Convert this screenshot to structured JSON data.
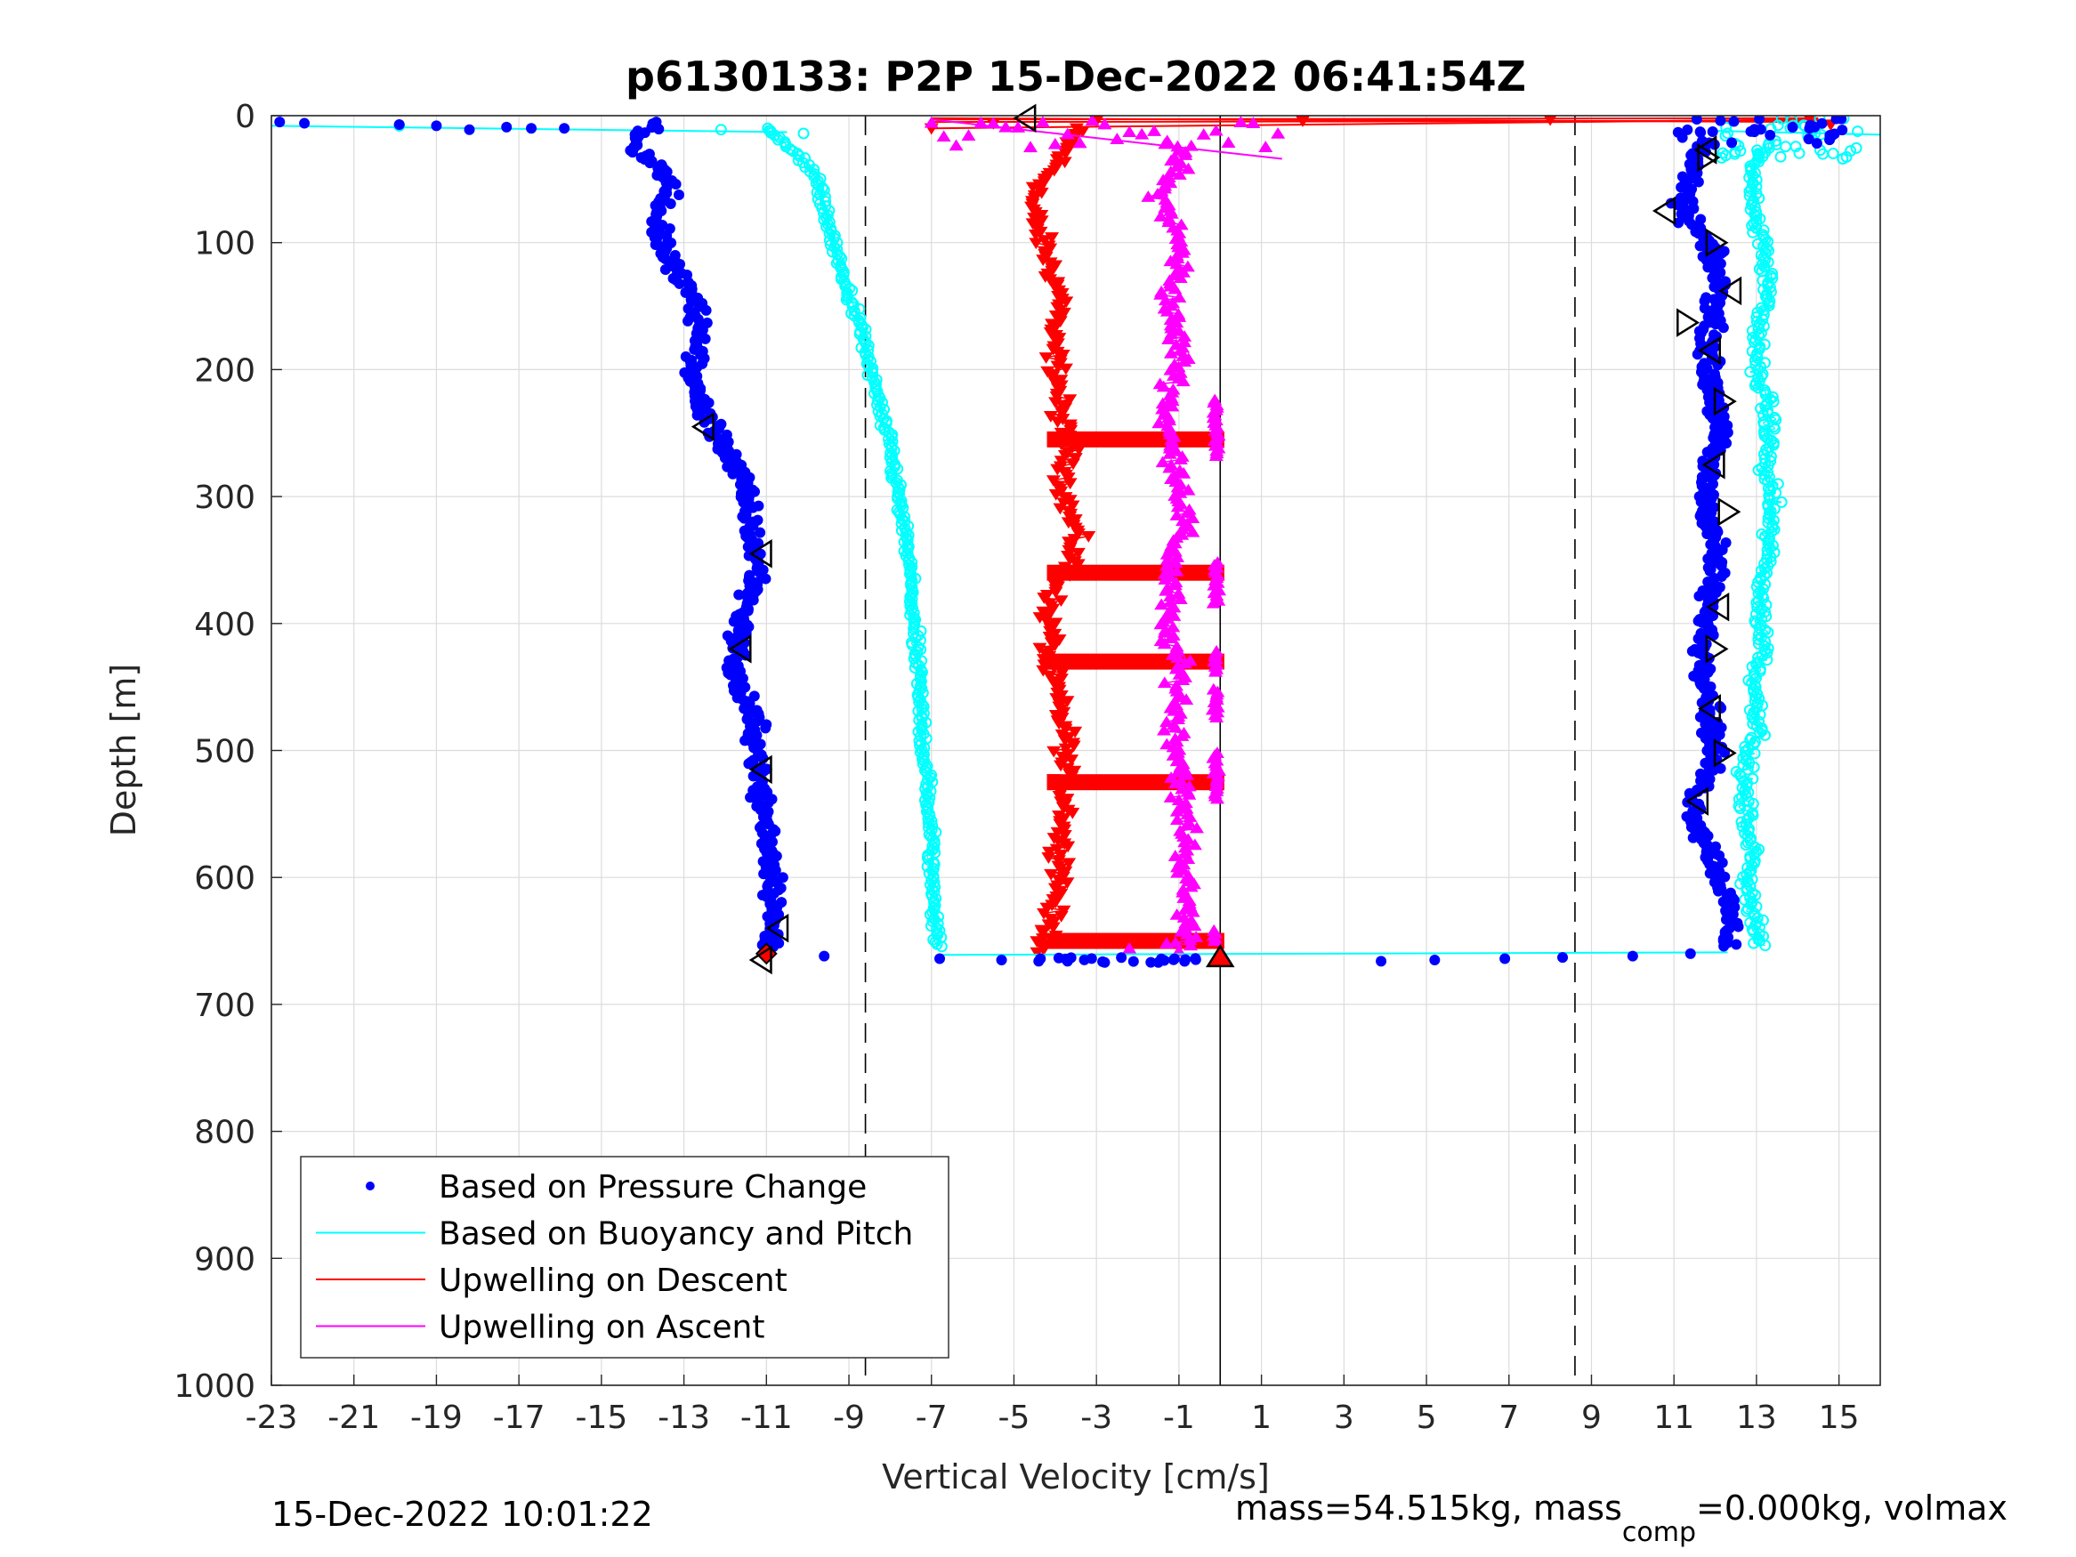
{
  "chart_data": {
    "type": "scatter",
    "title": "p6130133: P2P 15-Dec-2022 06:41:54Z",
    "xlabel": "Vertical Velocity [cm/s]",
    "ylabel": "Depth [m]",
    "xlim": [
      -23,
      16
    ],
    "ylim": [
      0,
      1000
    ],
    "y_reversed": true,
    "grid": true,
    "xticks": [
      -23,
      -21,
      -19,
      -17,
      -15,
      -13,
      -11,
      -9,
      -7,
      -5,
      -3,
      -1,
      1,
      3,
      5,
      7,
      9,
      11,
      13,
      15
    ],
    "yticks": [
      0,
      100,
      200,
      300,
      400,
      500,
      600,
      700,
      800,
      900,
      1000
    ],
    "reference_lines": [
      {
        "x": 0,
        "style": "solid"
      },
      {
        "x": -8.6,
        "style": "dashed"
      },
      {
        "x": 8.6,
        "style": "dashed"
      }
    ],
    "legend": {
      "placement": "bottom-left",
      "entries": [
        {
          "label": "Based on Pressure Change",
          "color": "#0000ff",
          "marker": "dot"
        },
        {
          "label": "Based on Buoyancy and Pitch",
          "color": "#00ffff",
          "marker": "line"
        },
        {
          "label": "Upwelling on Descent",
          "color": "#ff0000",
          "marker": "line"
        },
        {
          "label": "Upwelling on Ascent",
          "color": "#ff00ff",
          "marker": "line"
        }
      ]
    },
    "series": [
      {
        "name": "Based on Pressure Change",
        "color": "#0000ff",
        "marker": "dot",
        "profiles": [
          {
            "depth": [
              5,
              10,
              20,
              30,
              40,
              60,
              80,
              100,
              120,
              140,
              160,
              180,
              200,
              220,
              240,
              260,
              280,
              300,
              320,
              340,
              360,
              380,
              400,
              420,
              440,
              460,
              480,
              500,
              520,
              540,
              560,
              580,
              600,
              620,
              640,
              655
            ],
            "velocity": [
              -13.5,
              -13.8,
              -14.2,
              -14.0,
              -13.6,
              -13.3,
              -13.7,
              -13.5,
              -13.3,
              -12.8,
              -12.7,
              -12.6,
              -12.8,
              -12.7,
              -12.4,
              -12.0,
              -11.7,
              -11.5,
              -11.4,
              -11.3,
              -11.2,
              -11.4,
              -11.6,
              -11.7,
              -11.8,
              -11.5,
              -11.3,
              -11.2,
              -11.2,
              -11.1,
              -11.0,
              -10.9,
              -10.8,
              -10.8,
              -10.9,
              -10.9
            ]
          },
          {
            "depth": [
              20,
              35,
              50,
              70,
              85,
              100,
              120,
              140,
              160,
              180,
              200,
              220,
              240,
              260,
              280,
              300,
              320,
              340,
              360,
              380,
              400,
              420,
              440,
              460,
              480,
              500,
              520,
              540,
              560,
              580,
              600,
              620,
              640,
              655
            ],
            "velocity": [
              11.8,
              11.6,
              11.3,
              11.2,
              11.4,
              11.8,
              12.0,
              12.1,
              11.9,
              11.9,
              11.8,
              12.0,
              12.1,
              12.0,
              11.8,
              11.8,
              11.9,
              12.0,
              12.0,
              11.8,
              11.8,
              11.7,
              11.8,
              11.9,
              11.9,
              12.0,
              11.8,
              11.5,
              11.6,
              11.9,
              12.1,
              12.3,
              12.4,
              12.3
            ]
          }
        ],
        "surface_points": {
          "depth": [
            5,
            6,
            7,
            8,
            9,
            10,
            10,
            11
          ],
          "velocity": [
            -22.8,
            -22.2,
            -19.9,
            -19.0,
            -17.3,
            -15.9,
            -16.7,
            -18.2
          ]
        },
        "bottom_points": {
          "depth": [
            662,
            664,
            665,
            666,
            666,
            667,
            667,
            666,
            665,
            664,
            663,
            662,
            660
          ],
          "velocity": [
            -9.6,
            -6.8,
            -5.3,
            -4.4,
            -3.7,
            -2.8,
            -1.5,
            3.9,
            5.2,
            6.9,
            8.3,
            10.0,
            11.4
          ]
        }
      },
      {
        "name": "Based on Buoyancy and Pitch",
        "color": "#00ffff",
        "marker": "line",
        "profiles": [
          {
            "depth": [
              10,
              20,
              30,
              50,
              70,
              100,
              120,
              140,
              160,
              180,
              200,
              220,
              240,
              260,
              280,
              300,
              320,
              340,
              360,
              380,
              400,
              420,
              440,
              460,
              480,
              500,
              520,
              540,
              560,
              580,
              600,
              620,
              640,
              655
            ],
            "velocity": [
              -11.0,
              -10.7,
              -10.2,
              -9.8,
              -9.6,
              -9.4,
              -9.2,
              -9.0,
              -8.8,
              -8.6,
              -8.5,
              -8.3,
              -8.2,
              -8.0,
              -7.9,
              -7.8,
              -7.7,
              -7.6,
              -7.5,
              -7.5,
              -7.4,
              -7.4,
              -7.3,
              -7.3,
              -7.2,
              -7.2,
              -7.1,
              -7.1,
              -7.0,
              -7.0,
              -7.0,
              -6.9,
              -6.9,
              -6.8
            ]
          },
          {
            "depth": [
              20,
              40,
              60,
              80,
              100,
              120,
              140,
              160,
              180,
              200,
              220,
              240,
              260,
              280,
              300,
              320,
              340,
              360,
              380,
              400,
              420,
              440,
              460,
              480,
              500,
              520,
              540,
              560,
              580,
              600,
              620,
              640,
              655
            ],
            "velocity": [
              13.3,
              12.9,
              13.0,
              12.9,
              13.2,
              13.2,
              13.3,
              13.1,
              13.0,
              13.0,
              13.2,
              13.3,
              13.3,
              13.2,
              13.4,
              13.3,
              13.3,
              13.2,
              13.1,
              13.1,
              13.2,
              13.0,
              13.0,
              13.1,
              12.8,
              12.7,
              12.7,
              12.8,
              12.9,
              12.8,
              12.9,
              13.0,
              13.1
            ]
          }
        ]
      },
      {
        "name": "Upwelling on Descent",
        "color": "#ff0000",
        "marker": "triangle-down",
        "profiles": [
          {
            "depth": [
              10,
              30,
              50,
              70,
              90,
              110,
              130,
              150,
              170,
              190,
              210,
              230,
              250,
              270,
              290,
              310,
              330,
              350,
              370,
              390,
              410,
              430,
              450,
              470,
              490,
              510,
              530,
              550,
              570,
              590,
              610,
              630,
              650,
              660
            ],
            "velocity": [
              -3.5,
              -3.8,
              -4.2,
              -4.6,
              -4.4,
              -4.2,
              -4.0,
              -3.8,
              -4.1,
              -4.0,
              -3.9,
              -3.9,
              -3.8,
              -3.6,
              -3.8,
              -3.7,
              -3.5,
              -3.6,
              -3.9,
              -4.2,
              -4.1,
              -4.2,
              -4.0,
              -3.9,
              -3.7,
              -3.8,
              -3.8,
              -3.7,
              -3.9,
              -3.8,
              -3.9,
              -4.1,
              -4.2,
              -4.3
            ]
          }
        ],
        "horizontal_bands": [
          255,
          360,
          430,
          525,
          650
        ]
      },
      {
        "name": "Upwelling on Ascent",
        "color": "#ff00ff",
        "marker": "triangle-up",
        "profiles": [
          {
            "depth": [
              20,
              40,
              60,
              80,
              100,
              120,
              140,
              160,
              180,
              200,
              220,
              240,
              260,
              280,
              300,
              320,
              340,
              360,
              380,
              400,
              420,
              440,
              460,
              480,
              500,
              520,
              540,
              560,
              580,
              600,
              620,
              640,
              655
            ],
            "velocity": [
              -1.2,
              -1.0,
              -1.5,
              -1.2,
              -1.0,
              -1.0,
              -1.2,
              -1.2,
              -1.0,
              -1.0,
              -1.2,
              -1.3,
              -1.2,
              -1.0,
              -0.9,
              -0.9,
              -1.1,
              -1.2,
              -1.2,
              -1.4,
              -1.1,
              -1.0,
              -1.0,
              -1.1,
              -1.0,
              -0.9,
              -1.0,
              -0.8,
              -0.8,
              -0.9,
              -0.8,
              -0.8,
              -0.8
            ]
          }
        ]
      }
    ],
    "event_markers": [
      {
        "x": 0,
        "y": 663,
        "shape": "triangle-up",
        "fill": "#ff0000"
      },
      {
        "x": -11.0,
        "y": 660,
        "shape": "diamond",
        "fill": "#ff0000"
      },
      {
        "x": -4.7,
        "y": 2,
        "shape": "triangle-left",
        "fill": "#ffffff"
      },
      {
        "x": -12.5,
        "y": 245,
        "shape": "triangle-left",
        "fill": "#ffffff"
      },
      {
        "x": -11.1,
        "y": 345,
        "shape": "triangle-left",
        "fill": "#ffffff"
      },
      {
        "x": -11.6,
        "y": 420,
        "shape": "triangle-left",
        "fill": "#ffffff"
      },
      {
        "x": -11.1,
        "y": 515,
        "shape": "triangle-left",
        "fill": "#ffffff"
      },
      {
        "x": -10.7,
        "y": 640,
        "shape": "triangle-left",
        "fill": "#ffffff"
      },
      {
        "x": -11.1,
        "y": 665,
        "shape": "triangle-left",
        "fill": "#ffffff"
      },
      {
        "x": 11.8,
        "y": 27,
        "shape": "triangle-left",
        "fill": "#ffffff"
      },
      {
        "x": 11.8,
        "y": 33,
        "shape": "triangle-right",
        "fill": "#ffffff"
      },
      {
        "x": 10.8,
        "y": 75,
        "shape": "triangle-left",
        "fill": "#ffffff"
      },
      {
        "x": 12.0,
        "y": 100,
        "shape": "triangle-right",
        "fill": "#ffffff"
      },
      {
        "x": 12.4,
        "y": 138,
        "shape": "triangle-left",
        "fill": "#ffffff"
      },
      {
        "x": 11.3,
        "y": 163,
        "shape": "triangle-right",
        "fill": "#ffffff"
      },
      {
        "x": 11.9,
        "y": 185,
        "shape": "triangle-left",
        "fill": "#ffffff"
      },
      {
        "x": 12.2,
        "y": 225,
        "shape": "triangle-right",
        "fill": "#ffffff"
      },
      {
        "x": 12.0,
        "y": 275,
        "shape": "triangle-left",
        "fill": "#ffffff"
      },
      {
        "x": 12.3,
        "y": 312,
        "shape": "triangle-right",
        "fill": "#ffffff"
      },
      {
        "x": 12.1,
        "y": 387,
        "shape": "triangle-left",
        "fill": "#ffffff"
      },
      {
        "x": 12.0,
        "y": 420,
        "shape": "triangle-right",
        "fill": "#ffffff"
      },
      {
        "x": 11.9,
        "y": 467,
        "shape": "triangle-left",
        "fill": "#ffffff"
      },
      {
        "x": 12.2,
        "y": 502,
        "shape": "triangle-right",
        "fill": "#ffffff"
      },
      {
        "x": 11.6,
        "y": 540,
        "shape": "triangle-left",
        "fill": "#ffffff"
      }
    ]
  },
  "footer": {
    "timestamp": "15-Dec-2022 10:01:22",
    "mass_text_prefix": "mass=54.515kg, mass",
    "mass_subscript": "comp",
    "mass_text_suffix": "=0.000kg, volmax"
  }
}
